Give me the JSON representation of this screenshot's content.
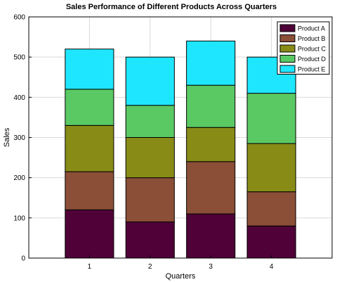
{
  "chart_data": {
    "type": "bar",
    "stacked": true,
    "title": "Sales Performance of Different Products Across Quarters",
    "xlabel": "Quarters",
    "ylabel": "Sales",
    "categories": [
      "1",
      "2",
      "3",
      "4"
    ],
    "ylim": [
      0,
      600
    ],
    "xlim": [
      0,
      5
    ],
    "yticks": [
      0,
      100,
      200,
      300,
      400,
      500,
      600
    ],
    "grid": true,
    "legend_position": "top-right",
    "series": [
      {
        "name": "Product A",
        "color": "#4f0138",
        "values": [
          120,
          90,
          110,
          80
        ]
      },
      {
        "name": "Product B",
        "color": "#8b4e37",
        "values": [
          95,
          110,
          130,
          85
        ]
      },
      {
        "name": "Product C",
        "color": "#888c17",
        "values": [
          115,
          100,
          85,
          120
        ]
      },
      {
        "name": "Product D",
        "color": "#5ac964",
        "values": [
          90,
          80,
          105,
          125
        ]
      },
      {
        "name": "Product E",
        "color": "#1ee6fe",
        "values": [
          100,
          120,
          110,
          90
        ]
      }
    ]
  }
}
